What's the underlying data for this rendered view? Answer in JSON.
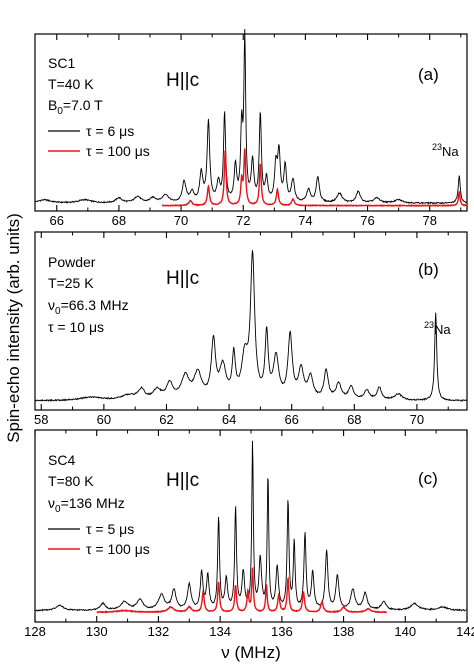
{
  "ylabel": "Spin-echo intensity (arb. units)",
  "xlabel": "ν (MHz)",
  "colors": {
    "black": "#000000",
    "red": "#e8141c"
  },
  "chart_data": [
    {
      "type": "line",
      "panel": "(a)",
      "info": [
        "SC1",
        "T=40 K",
        "B0=7.0 T"
      ],
      "field": "H||c",
      "na_label": "23Na",
      "xlim": [
        65.3,
        79.2
      ],
      "xticks": [
        66,
        68,
        70,
        72,
        74,
        76,
        78
      ],
      "legend": [
        "τ = 6 μs",
        "τ = 100 μs"
      ],
      "series": [
        {
          "name": "τ = 6 μs",
          "color": "#000000",
          "baseline": 0.03,
          "peaks": [
            [
              65.6,
              0.02,
              0.25
            ],
            [
              66.9,
              0.02,
              0.25
            ],
            [
              68.6,
              0.04,
              0.12
            ],
            [
              68.0,
              0.03,
              0.12
            ],
            [
              69.1,
              0.03,
              0.12
            ],
            [
              69.5,
              0.05,
              0.12
            ],
            [
              70.1,
              0.13,
              0.07
            ],
            [
              70.35,
              0.06,
              0.08
            ],
            [
              70.65,
              0.18,
              0.06
            ],
            [
              70.88,
              0.5,
              0.05
            ],
            [
              71.2,
              0.12,
              0.06
            ],
            [
              71.4,
              0.55,
              0.04
            ],
            [
              71.75,
              0.22,
              0.05
            ],
            [
              71.95,
              0.45,
              0.04
            ],
            [
              72.05,
              1.0,
              0.035
            ],
            [
              72.3,
              0.25,
              0.05
            ],
            [
              72.55,
              0.55,
              0.04
            ],
            [
              72.75,
              0.14,
              0.05
            ],
            [
              73.05,
              0.22,
              0.05
            ],
            [
              73.15,
              0.3,
              0.05
            ],
            [
              73.35,
              0.22,
              0.05
            ],
            [
              73.6,
              0.14,
              0.06
            ],
            [
              74.1,
              0.08,
              0.07
            ],
            [
              74.4,
              0.16,
              0.06
            ],
            [
              75.1,
              0.06,
              0.1
            ],
            [
              75.7,
              0.07,
              0.08
            ],
            [
              76.3,
              0.03,
              0.12
            ],
            [
              77.0,
              0.02,
              0.15
            ],
            [
              78.95,
              0.17,
              0.04
            ]
          ]
        },
        {
          "name": "τ = 100 μs",
          "color": "#e8141c",
          "baseline": 0.015,
          "peaks": [
            [
              70.3,
              0.03,
              0.06
            ],
            [
              70.88,
              0.12,
              0.04
            ],
            [
              71.42,
              0.34,
              0.035
            ],
            [
              71.95,
              0.15,
              0.035
            ],
            [
              72.05,
              0.34,
              0.035
            ],
            [
              72.55,
              0.26,
              0.035
            ],
            [
              73.1,
              0.1,
              0.04
            ],
            [
              73.6,
              0.04,
              0.05
            ],
            [
              78.95,
              0.09,
              0.03
            ]
          ]
        }
      ]
    },
    {
      "type": "line",
      "panel": "(b)",
      "info": [
        "Powder",
        "T=25 K",
        "ν0=66.3 MHz",
        "τ = 10 μs"
      ],
      "field": "H||c",
      "na_label": "23Na",
      "xlim": [
        57.8,
        71.6
      ],
      "xticks": [
        58,
        60,
        62,
        64,
        66,
        68,
        70
      ],
      "series": [
        {
          "name": "τ = 10 μs",
          "color": "#000000",
          "baseline": 0.02,
          "peaks": [
            [
              59.6,
              0.02,
              0.4
            ],
            [
              60.8,
              0.03,
              0.3
            ],
            [
              61.2,
              0.06,
              0.12
            ],
            [
              61.7,
              0.06,
              0.15
            ],
            [
              62.1,
              0.1,
              0.12
            ],
            [
              62.6,
              0.14,
              0.15
            ],
            [
              63.0,
              0.16,
              0.15
            ],
            [
              63.5,
              0.36,
              0.08
            ],
            [
              63.8,
              0.2,
              0.12
            ],
            [
              64.15,
              0.26,
              0.06
            ],
            [
              64.5,
              0.25,
              0.12
            ],
            [
              64.75,
              0.88,
              0.08
            ],
            [
              65.2,
              0.4,
              0.06
            ],
            [
              65.5,
              0.26,
              0.1
            ],
            [
              65.95,
              0.4,
              0.08
            ],
            [
              66.3,
              0.18,
              0.1
            ],
            [
              66.6,
              0.14,
              0.1
            ],
            [
              67.1,
              0.18,
              0.08
            ],
            [
              67.5,
              0.1,
              0.1
            ],
            [
              67.9,
              0.08,
              0.1
            ],
            [
              68.4,
              0.06,
              0.1
            ],
            [
              68.8,
              0.08,
              0.08
            ],
            [
              69.4,
              0.04,
              0.15
            ],
            [
              70.6,
              0.56,
              0.04
            ]
          ]
        }
      ]
    },
    {
      "type": "line",
      "panel": "(c)",
      "info": [
        "SC4",
        "T=80 K",
        "ν0=136 MHz"
      ],
      "field": "H||c",
      "xlim": [
        128,
        142
      ],
      "xticks": [
        128,
        130,
        132,
        134,
        136,
        138,
        140,
        142
      ],
      "legend": [
        "τ = 5 μs",
        "τ = 100 μs"
      ],
      "series": [
        {
          "name": "τ = 5 μs",
          "color": "#000000",
          "baseline": 0.02,
          "peaks": [
            [
              128.8,
              0.03,
              0.15
            ],
            [
              130.2,
              0.04,
              0.1
            ],
            [
              130.9,
              0.05,
              0.15
            ],
            [
              131.4,
              0.06,
              0.12
            ],
            [
              132.1,
              0.09,
              0.12
            ],
            [
              132.5,
              0.12,
              0.08
            ],
            [
              133.0,
              0.15,
              0.07
            ],
            [
              133.4,
              0.22,
              0.05
            ],
            [
              133.6,
              0.2,
              0.05
            ],
            [
              133.95,
              0.55,
              0.035
            ],
            [
              134.2,
              0.18,
              0.05
            ],
            [
              134.5,
              0.6,
              0.035
            ],
            [
              134.75,
              0.22,
              0.05
            ],
            [
              135.05,
              1.0,
              0.03
            ],
            [
              135.3,
              0.3,
              0.05
            ],
            [
              135.55,
              0.8,
              0.03
            ],
            [
              135.85,
              0.25,
              0.05
            ],
            [
              136.2,
              0.65,
              0.035
            ],
            [
              136.4,
              0.4,
              0.035
            ],
            [
              136.75,
              0.45,
              0.04
            ],
            [
              137.0,
              0.22,
              0.05
            ],
            [
              137.45,
              0.35,
              0.05
            ],
            [
              137.8,
              0.2,
              0.06
            ],
            [
              138.3,
              0.12,
              0.08
            ],
            [
              138.7,
              0.1,
              0.08
            ],
            [
              139.3,
              0.05,
              0.1
            ],
            [
              140.3,
              0.04,
              0.15
            ],
            [
              141.2,
              0.02,
              0.2
            ]
          ]
        },
        {
          "name": "τ = 100 μs",
          "color": "#e8141c",
          "baseline": 0.01,
          "peaks": [
            [
              130.9,
              0.01,
              0.3
            ],
            [
              132.4,
              0.03,
              0.12
            ],
            [
              133.0,
              0.03,
              0.08
            ],
            [
              133.45,
              0.12,
              0.04
            ],
            [
              133.95,
              0.18,
              0.035
            ],
            [
              134.5,
              0.16,
              0.035
            ],
            [
              134.9,
              0.12,
              0.035
            ],
            [
              135.05,
              0.26,
              0.03
            ],
            [
              135.5,
              0.16,
              0.03
            ],
            [
              135.9,
              0.1,
              0.04
            ],
            [
              136.2,
              0.2,
              0.035
            ],
            [
              136.7,
              0.12,
              0.04
            ],
            [
              137.3,
              0.06,
              0.05
            ],
            [
              138.0,
              0.03,
              0.08
            ],
            [
              138.8,
              0.02,
              0.1
            ]
          ]
        }
      ]
    }
  ]
}
